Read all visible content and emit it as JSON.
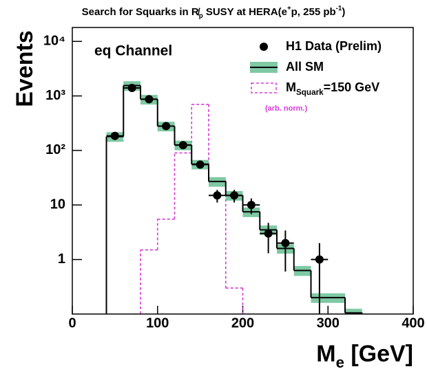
{
  "chart_data": {
    "type": "histogram",
    "title_parts": [
      {
        "text": "Search for Squarks in R̸"
      },
      {
        "text": "p",
        "style": "sub"
      },
      {
        "text": " SUSY at HERA(e"
      },
      {
        "text": "+",
        "style": "sup"
      },
      {
        "text": "p, 255 pb"
      },
      {
        "text": "-1",
        "style": "sup"
      },
      {
        "text": ")"
      }
    ],
    "annotation": "eq Channel",
    "y_label": "Events",
    "x_label_parts": [
      {
        "text": "M"
      },
      {
        "text": "e",
        "style": "sub"
      },
      {
        "text": " [GeV]"
      }
    ],
    "xlim": [
      0,
      400
    ],
    "xticks": [
      0,
      100,
      200,
      300,
      400
    ],
    "ylim": [
      0.1,
      18000
    ],
    "yticks": [
      1,
      10,
      {
        "value": 100,
        "label": "10²"
      },
      {
        "value": 1000,
        "label": "10³"
      },
      {
        "value": 10000,
        "label": "10⁴"
      }
    ],
    "log_y": true,
    "legend_position": "upper right",
    "series": [
      {
        "name": "H1 Data (Prelim)",
        "style": "points",
        "color": "#000000",
        "x": [
          50,
          70,
          90,
          110,
          130,
          150,
          170,
          190,
          210,
          230,
          250,
          290
        ],
        "values": [
          185,
          1400,
          870,
          280,
          125,
          55,
          15,
          15,
          10,
          3,
          2,
          1
        ],
        "errors": [
          14,
          37,
          30,
          17,
          11,
          7.4,
          3.9,
          3.9,
          3.2,
          1.7,
          1.4,
          1
        ],
        "xerr": [
          10,
          10,
          10,
          10,
          10,
          10,
          10,
          10,
          10,
          10,
          10,
          10
        ]
      },
      {
        "name": "All SM",
        "style": "step-band",
        "color": "#000000",
        "band_color": "#7fc8a4",
        "bins": [
          40,
          60,
          80,
          100,
          120,
          140,
          160,
          180,
          200,
          220,
          240,
          260,
          280,
          320,
          340
        ],
        "values": [
          180,
          1550,
          870,
          280,
          126,
          56,
          27,
          15,
          7.5,
          3.5,
          1.6,
          0.63,
          0.2,
          0.105
        ],
        "errors": [
          36,
          310,
          175,
          56,
          25,
          11,
          5.4,
          3,
          1.5,
          0.7,
          0.32,
          0.13,
          0.04,
          0.02
        ]
      },
      {
        "name_parts": [
          {
            "text": "M"
          },
          {
            "text": "Squark",
            "style": "sub"
          },
          {
            "text": "=150 GeV"
          }
        ],
        "note": "(arb. norm.)",
        "style": "dashed-step",
        "color": "#d63bd6",
        "bins": [
          80,
          100,
          120,
          140,
          160,
          180,
          200
        ],
        "values": [
          1.5,
          5.5,
          90,
          700,
          29,
          0.3
        ]
      }
    ]
  }
}
